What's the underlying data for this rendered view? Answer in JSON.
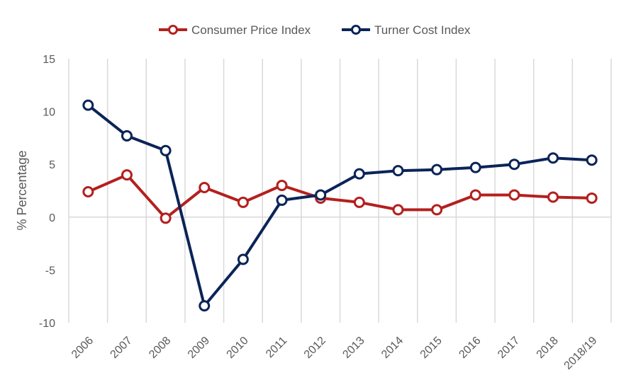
{
  "chart_data": {
    "type": "line",
    "title": "",
    "xlabel": "",
    "ylabel": "% Percentage",
    "ylim": [
      -10,
      15
    ],
    "yticks": [
      15,
      10,
      5,
      0,
      -5,
      -10
    ],
    "ytick_labels": [
      "15",
      "10",
      "5",
      "0",
      "-5",
      "-10"
    ],
    "categories": [
      "2006",
      "2007",
      "2008",
      "2009",
      "2010",
      "2011",
      "2012",
      "2013",
      "2014",
      "2015",
      "2016",
      "2017",
      "2018",
      "2018/19"
    ],
    "grid": "vertical",
    "legend_position": "top",
    "series": [
      {
        "name": "Consumer Price Index",
        "color": "#b3201e",
        "values": [
          2.4,
          4.0,
          -0.1,
          2.8,
          1.4,
          3.0,
          1.8,
          1.4,
          0.7,
          0.7,
          2.1,
          2.1,
          1.9,
          1.8
        ]
      },
      {
        "name": "Turner Cost Index",
        "color": "#0b2458",
        "values": [
          10.6,
          7.7,
          6.3,
          -8.4,
          -4.0,
          1.6,
          2.1,
          4.1,
          4.4,
          4.5,
          4.7,
          5.0,
          5.6,
          5.4
        ]
      }
    ]
  }
}
